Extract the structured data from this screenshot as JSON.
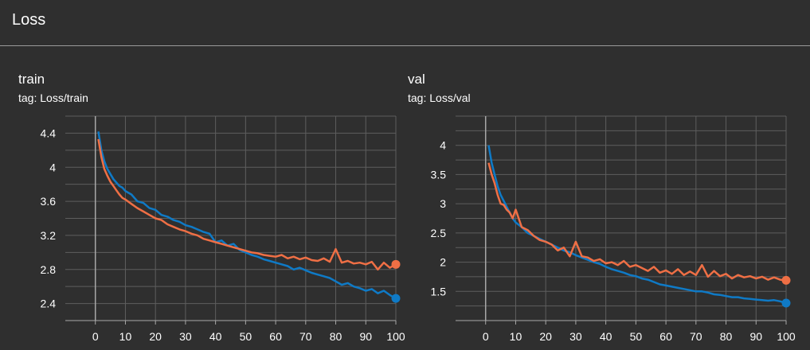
{
  "section": {
    "title": "Loss"
  },
  "charts": [
    {
      "title": "train",
      "tag": "tag: Loss/train"
    },
    {
      "title": "val",
      "tag": "tag: Loss/val"
    }
  ],
  "chart_data": [
    {
      "type": "line",
      "title": "train",
      "subtitle": "tag: Loss/train",
      "xlim": [
        -10,
        100
      ],
      "ylim": [
        2.2,
        4.6
      ],
      "xticks": [
        0,
        10,
        20,
        30,
        40,
        50,
        60,
        70,
        80,
        90,
        100
      ],
      "yticks": [
        2.4,
        2.8,
        3.2,
        3.6,
        4.0,
        4.4
      ],
      "ytick_labels": [
        "2.4",
        "2.8",
        "3.2",
        "3.6",
        "4",
        "4.4"
      ],
      "grid": true,
      "series": [
        {
          "color": "#0f7ac6",
          "x": [
            1,
            2,
            3,
            4,
            5,
            6,
            7,
            8,
            9,
            10,
            12,
            14,
            16,
            18,
            20,
            22,
            24,
            26,
            28,
            30,
            32,
            34,
            36,
            38,
            40,
            42,
            44,
            46,
            48,
            50,
            52,
            54,
            56,
            58,
            60,
            62,
            64,
            66,
            68,
            70,
            72,
            74,
            76,
            78,
            80,
            82,
            84,
            86,
            88,
            90,
            92,
            94,
            96,
            98,
            100
          ],
          "values": [
            4.42,
            4.2,
            4.07,
            3.98,
            3.92,
            3.86,
            3.82,
            3.78,
            3.76,
            3.72,
            3.68,
            3.6,
            3.58,
            3.52,
            3.5,
            3.44,
            3.42,
            3.38,
            3.36,
            3.32,
            3.3,
            3.27,
            3.24,
            3.22,
            3.12,
            3.14,
            3.08,
            3.1,
            3.03,
            3.0,
            2.97,
            2.95,
            2.92,
            2.9,
            2.88,
            2.86,
            2.84,
            2.8,
            2.82,
            2.79,
            2.76,
            2.74,
            2.72,
            2.7,
            2.66,
            2.62,
            2.64,
            2.6,
            2.58,
            2.55,
            2.57,
            2.52,
            2.55,
            2.5,
            2.46
          ]
        },
        {
          "color": "#ef6f45",
          "x": [
            1,
            2,
            3,
            4,
            5,
            6,
            7,
            8,
            9,
            10,
            12,
            14,
            16,
            18,
            20,
            22,
            24,
            26,
            28,
            30,
            32,
            34,
            36,
            38,
            40,
            42,
            44,
            46,
            48,
            50,
            52,
            54,
            56,
            58,
            60,
            62,
            64,
            66,
            68,
            70,
            72,
            74,
            76,
            78,
            80,
            82,
            84,
            86,
            88,
            90,
            92,
            94,
            96,
            98,
            100
          ],
          "values": [
            4.33,
            4.12,
            3.98,
            3.9,
            3.83,
            3.78,
            3.73,
            3.68,
            3.64,
            3.62,
            3.57,
            3.52,
            3.48,
            3.44,
            3.4,
            3.38,
            3.33,
            3.3,
            3.27,
            3.25,
            3.22,
            3.2,
            3.16,
            3.14,
            3.12,
            3.1,
            3.08,
            3.06,
            3.04,
            3.02,
            3.0,
            2.99,
            2.97,
            2.96,
            2.95,
            2.97,
            2.93,
            2.95,
            2.92,
            2.94,
            2.91,
            2.9,
            2.93,
            2.89,
            3.04,
            2.88,
            2.9,
            2.87,
            2.88,
            2.86,
            2.89,
            2.8,
            2.88,
            2.82,
            2.86
          ]
        }
      ]
    },
    {
      "type": "line",
      "title": "val",
      "subtitle": "tag: Loss/val",
      "xlim": [
        -10,
        100
      ],
      "ylim": [
        1.0,
        4.5
      ],
      "xticks": [
        0,
        10,
        20,
        30,
        40,
        50,
        60,
        70,
        80,
        90,
        100
      ],
      "yticks": [
        1.5,
        2.0,
        2.5,
        3.0,
        3.5,
        4.0
      ],
      "ytick_labels": [
        "1.5",
        "2",
        "2.5",
        "3",
        "3.5",
        "4"
      ],
      "grid": true,
      "series": [
        {
          "color": "#0f7ac6",
          "x": [
            1,
            2,
            3,
            4,
            5,
            6,
            7,
            8,
            9,
            10,
            12,
            14,
            16,
            18,
            20,
            22,
            24,
            26,
            28,
            30,
            32,
            34,
            36,
            38,
            40,
            42,
            44,
            46,
            48,
            50,
            52,
            54,
            56,
            58,
            60,
            62,
            64,
            66,
            68,
            70,
            72,
            74,
            76,
            78,
            80,
            82,
            84,
            86,
            88,
            90,
            92,
            94,
            96,
            98,
            100
          ],
          "values": [
            4.0,
            3.7,
            3.5,
            3.3,
            3.15,
            3.05,
            2.95,
            2.85,
            2.75,
            2.68,
            2.6,
            2.5,
            2.45,
            2.4,
            2.35,
            2.3,
            2.25,
            2.2,
            2.17,
            2.12,
            2.08,
            2.04,
            2.0,
            1.97,
            1.92,
            1.88,
            1.85,
            1.82,
            1.78,
            1.76,
            1.72,
            1.7,
            1.66,
            1.62,
            1.6,
            1.58,
            1.56,
            1.54,
            1.52,
            1.5,
            1.5,
            1.48,
            1.45,
            1.44,
            1.42,
            1.4,
            1.4,
            1.38,
            1.37,
            1.36,
            1.35,
            1.34,
            1.35,
            1.33,
            1.3
          ]
        },
        {
          "color": "#ef6f45",
          "x": [
            1,
            2,
            3,
            4,
            5,
            6,
            7,
            8,
            9,
            10,
            12,
            14,
            16,
            18,
            20,
            22,
            24,
            26,
            28,
            30,
            32,
            34,
            36,
            38,
            40,
            42,
            44,
            46,
            48,
            50,
            52,
            54,
            56,
            58,
            60,
            62,
            64,
            66,
            68,
            70,
            72,
            74,
            76,
            78,
            80,
            82,
            84,
            86,
            88,
            90,
            92,
            94,
            96,
            98,
            100
          ],
          "values": [
            3.7,
            3.5,
            3.35,
            3.15,
            3.0,
            2.98,
            2.9,
            2.85,
            2.75,
            2.9,
            2.6,
            2.55,
            2.45,
            2.38,
            2.35,
            2.3,
            2.2,
            2.25,
            2.1,
            2.35,
            2.1,
            2.08,
            2.02,
            2.05,
            1.98,
            2.0,
            1.95,
            2.02,
            1.92,
            1.95,
            1.9,
            1.85,
            1.92,
            1.82,
            1.86,
            1.8,
            1.88,
            1.78,
            1.84,
            1.78,
            1.95,
            1.75,
            1.85,
            1.76,
            1.8,
            1.72,
            1.78,
            1.74,
            1.76,
            1.72,
            1.75,
            1.7,
            1.74,
            1.7,
            1.69
          ]
        }
      ]
    }
  ]
}
